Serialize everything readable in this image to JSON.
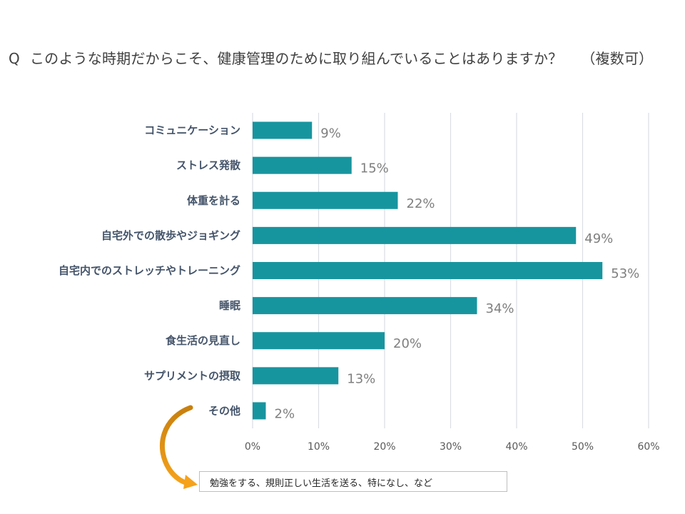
{
  "question": {
    "marker": "Q",
    "text": "このような時期だからこそ、健康管理のために取り組んでいることはありますか？",
    "suffix": "（複数可）"
  },
  "note": {
    "text": "勉強をする、規則正しい生活を送る、特になし、など"
  },
  "colors": {
    "bar": "#17959f",
    "grid": "#d9dde3",
    "arrow": "#f29b11"
  },
  "chart_data": {
    "type": "bar",
    "orientation": "horizontal",
    "categories": [
      "コミュニケーション",
      "ストレス発散",
      "体重を計る",
      "自宅外での散歩やジョギング",
      "自宅内でのストレッチやトレーニング",
      "睡眠",
      "食生活の見直し",
      "サプリメントの摂取",
      "その他"
    ],
    "values": [
      9,
      15,
      22,
      49,
      53,
      34,
      20,
      13,
      2
    ],
    "value_labels": [
      "9%",
      "15%",
      "22%",
      "49%",
      "53%",
      "34%",
      "20%",
      "13%",
      "2%"
    ],
    "xlim": [
      0,
      60
    ],
    "x_ticks": [
      "0%",
      "10%",
      "20%",
      "30%",
      "40%",
      "50%",
      "60%"
    ],
    "grid": true
  }
}
